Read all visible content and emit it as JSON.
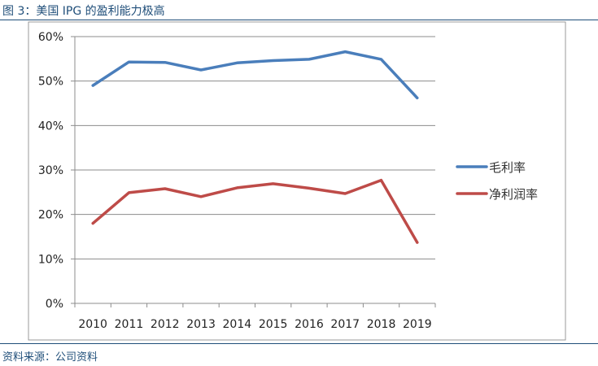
{
  "figure_title": "图 3：美国 IPG 的盈利能力极高",
  "source": "资料来源：公司资料",
  "chart_data": {
    "type": "line",
    "title": "",
    "xlabel": "",
    "ylabel": "",
    "ylim": [
      0,
      60
    ],
    "y_tick_labels": [
      "0%",
      "10%",
      "20%",
      "30%",
      "40%",
      "50%",
      "60%"
    ],
    "y_ticks": [
      0,
      10,
      20,
      30,
      40,
      50,
      60
    ],
    "categories": [
      "2010",
      "2011",
      "2012",
      "2013",
      "2014",
      "2015",
      "2016",
      "2017",
      "2018",
      "2019"
    ],
    "grid": true,
    "legend_position": "right",
    "series": [
      {
        "name": "毛利率",
        "color": "#4a7ebb",
        "values": [
          49.0,
          54.3,
          54.2,
          52.5,
          54.1,
          54.6,
          54.9,
          56.6,
          54.9,
          46.2
        ]
      },
      {
        "name": "净利润率",
        "color": "#be4b48",
        "values": [
          18.0,
          24.9,
          25.8,
          24.0,
          26.0,
          26.9,
          25.9,
          24.7,
          27.7,
          13.7
        ]
      }
    ]
  }
}
